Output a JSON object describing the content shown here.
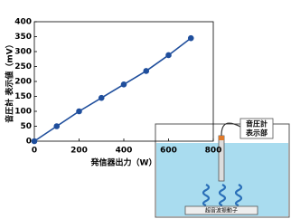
{
  "chart_data": {
    "type": "line",
    "y_label": "音圧計 表示値（mV）",
    "x_label": "発信器出力（W）",
    "x": [
      0,
      100,
      200,
      300,
      400,
      500,
      600,
      700
    ],
    "series": [
      {
        "color": "#1f4e9c",
        "values": [
          0,
          50,
          100,
          145,
          190,
          235,
          288,
          345
        ]
      }
    ],
    "xlim": [
      0,
      800
    ],
    "xticks": [
      0,
      200,
      400,
      600,
      800
    ],
    "ylim": [
      0,
      400
    ],
    "yticks": [
      0,
      50,
      100,
      150,
      200,
      250,
      300,
      350,
      400
    ]
  },
  "diagram": {
    "display_label": [
      "音圧計",
      "表示部"
    ],
    "transducer_label": "超音波振動子"
  }
}
